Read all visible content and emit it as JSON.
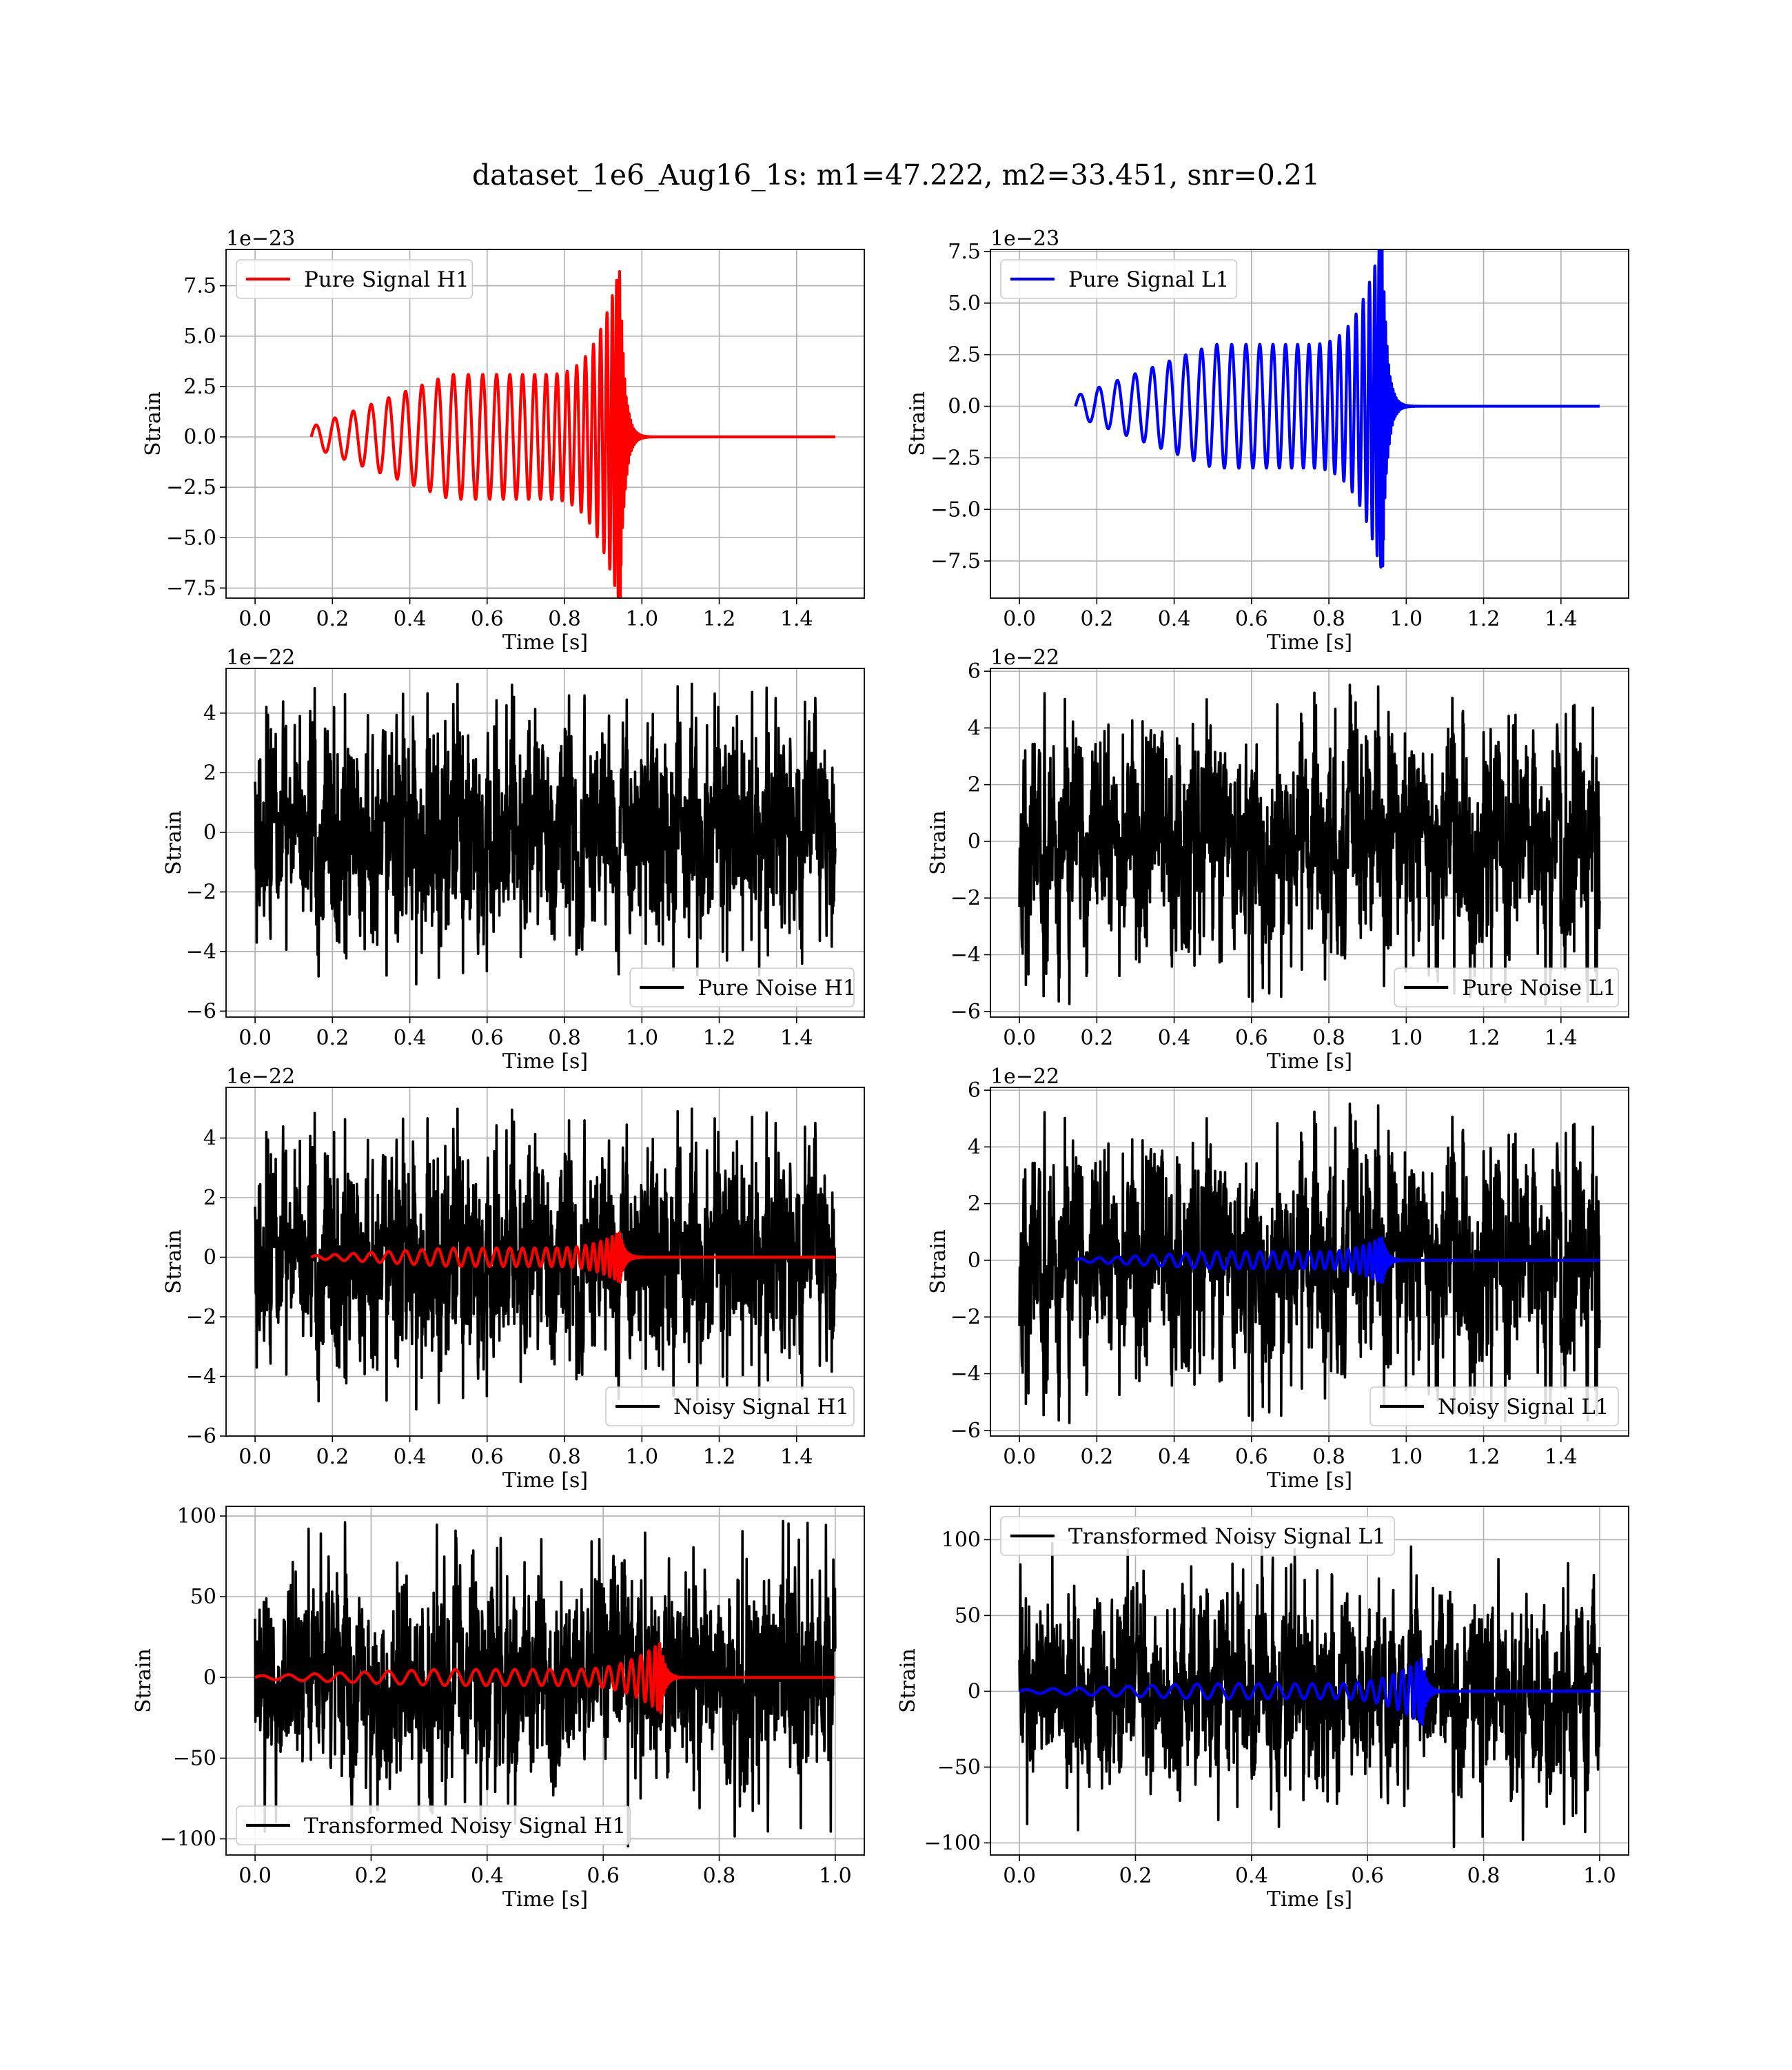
{
  "figure": {
    "title": "dataset_1e6_Aug16_1s: m1=47.222, m2=33.451, snr=0.21"
  },
  "colors": {
    "h1_signal": "#ff0000",
    "l1_signal": "#0000ff",
    "noise": "#000000",
    "grid": "#b0b0b0",
    "axes": "#000000",
    "background": "#ffffff"
  },
  "chart_data": [
    {
      "type": "line",
      "panel": "pure-signal-h1",
      "xlabel": "Time [s]",
      "ylabel": "Strain",
      "offset_text": "1e−23",
      "xlim": [
        -0.075,
        1.575
      ],
      "ylim": [
        -8.0,
        9.3
      ],
      "xticks": [
        0.0,
        0.2,
        0.4,
        0.6,
        0.8,
        1.0,
        1.2,
        1.4
      ],
      "xtick_labels": [
        "0.0",
        "0.2",
        "0.4",
        "0.6",
        "0.8",
        "1.0",
        "1.2",
        "1.4"
      ],
      "yticks": [
        -7.5,
        -5.0,
        -2.5,
        0.0,
        2.5,
        5.0,
        7.5
      ],
      "ytick_labels": [
        "−7.5",
        "−5.0",
        "−2.5",
        "0.0",
        "2.5",
        "5.0",
        "7.5"
      ],
      "grid": true,
      "legend_position": "upper-left",
      "series": [
        {
          "name": "Pure Signal H1",
          "kind": "chirp",
          "color": "#ff0000",
          "t_start": 0.145,
          "t_merger": 0.945,
          "t_end": 1.5,
          "amp_start": 0.5,
          "amp_mid": 3.1,
          "amp_peak": 8.6,
          "cycles": 26,
          "ringdown": 0.012
        }
      ]
    },
    {
      "type": "line",
      "panel": "pure-signal-l1",
      "xlabel": "Time [s]",
      "ylabel": "Strain",
      "offset_text": "1e−23",
      "xlim": [
        -0.075,
        1.575
      ],
      "ylim": [
        -9.3,
        7.6
      ],
      "xticks": [
        0.0,
        0.2,
        0.4,
        0.6,
        0.8,
        1.0,
        1.2,
        1.4
      ],
      "xtick_labels": [
        "0.0",
        "0.2",
        "0.4",
        "0.6",
        "0.8",
        "1.0",
        "1.2",
        "1.4"
      ],
      "yticks": [
        -7.5,
        -5.0,
        -2.5,
        0.0,
        2.5,
        5.0,
        7.5
      ],
      "ytick_labels": [
        "−7.5",
        "−5.0",
        "−2.5",
        "0.0",
        "2.5",
        "5.0",
        "7.5"
      ],
      "grid": true,
      "legend_position": "upper-left",
      "series": [
        {
          "name": "Pure Signal L1",
          "kind": "chirp",
          "color": "#0000ff",
          "t_start": 0.145,
          "t_merger": 0.94,
          "t_end": 1.5,
          "amp_start": 0.5,
          "amp_mid": 3.0,
          "amp_peak": 8.4,
          "cycles": 26,
          "ringdown": 0.012
        }
      ]
    },
    {
      "type": "line",
      "panel": "pure-noise-h1",
      "xlabel": "Time [s]",
      "ylabel": "Strain",
      "offset_text": "1e−22",
      "xlim": [
        -0.075,
        1.575
      ],
      "ylim": [
        -6.2,
        5.5
      ],
      "xticks": [
        0.0,
        0.2,
        0.4,
        0.6,
        0.8,
        1.0,
        1.2,
        1.4
      ],
      "xtick_labels": [
        "0.0",
        "0.2",
        "0.4",
        "0.6",
        "0.8",
        "1.0",
        "1.2",
        "1.4"
      ],
      "yticks": [
        -6,
        -4,
        -2,
        0,
        2,
        4
      ],
      "ytick_labels": [
        "−6",
        "−4",
        "−2",
        "0",
        "2",
        "4"
      ],
      "grid": true,
      "legend_position": "lower-right",
      "series": [
        {
          "name": "Pure Noise H1",
          "kind": "noise",
          "color": "#000000",
          "t_start": 0.0,
          "t_end": 1.5,
          "amp": 1.7,
          "peak": 5.0,
          "seed": 11
        }
      ]
    },
    {
      "type": "line",
      "panel": "pure-noise-l1",
      "xlabel": "Time [s]",
      "ylabel": "Strain",
      "offset_text": "1e−22",
      "xlim": [
        -0.075,
        1.575
      ],
      "ylim": [
        -6.2,
        6.1
      ],
      "xticks": [
        0.0,
        0.2,
        0.4,
        0.6,
        0.8,
        1.0,
        1.2,
        1.4
      ],
      "xtick_labels": [
        "0.0",
        "0.2",
        "0.4",
        "0.6",
        "0.8",
        "1.0",
        "1.2",
        "1.4"
      ],
      "yticks": [
        -6,
        -4,
        -2,
        0,
        2,
        4,
        6
      ],
      "ytick_labels": [
        "−6",
        "−4",
        "−2",
        "0",
        "2",
        "4",
        "6"
      ],
      "grid": true,
      "legend_position": "lower-right",
      "series": [
        {
          "name": "Pure Noise L1",
          "kind": "noise",
          "color": "#000000",
          "t_start": 0.0,
          "t_end": 1.5,
          "amp": 1.8,
          "peak": 5.6,
          "seed": 23
        }
      ]
    },
    {
      "type": "line",
      "panel": "noisy-signal-h1",
      "xlabel": "Time [s]",
      "ylabel": "Strain",
      "offset_text": "1e−22",
      "xlim": [
        -0.075,
        1.575
      ],
      "ylim": [
        -6.0,
        5.7
      ],
      "xticks": [
        0.0,
        0.2,
        0.4,
        0.6,
        0.8,
        1.0,
        1.2,
        1.4
      ],
      "xtick_labels": [
        "0.0",
        "0.2",
        "0.4",
        "0.6",
        "0.8",
        "1.0",
        "1.2",
        "1.4"
      ],
      "yticks": [
        -6,
        -4,
        -2,
        0,
        2,
        4
      ],
      "ytick_labels": [
        "−6",
        "−4",
        "−2",
        "0",
        "2",
        "4"
      ],
      "grid": true,
      "legend_position": "lower-right",
      "series": [
        {
          "name": "Noisy Signal H1",
          "kind": "noise",
          "color": "#000000",
          "t_start": 0.0,
          "t_end": 1.5,
          "amp": 1.7,
          "peak": 5.0,
          "seed": 11
        },
        {
          "kind": "chirp",
          "color": "#ff0000",
          "t_start": 0.145,
          "t_merger": 0.945,
          "t_end": 1.5,
          "amp_start": 0.05,
          "amp_mid": 0.31,
          "amp_peak": 0.86,
          "cycles": 26,
          "ringdown": 0.012
        }
      ]
    },
    {
      "type": "line",
      "panel": "noisy-signal-l1",
      "xlabel": "Time [s]",
      "ylabel": "Strain",
      "offset_text": "1e−22",
      "xlim": [
        -0.075,
        1.575
      ],
      "ylim": [
        -6.2,
        6.1
      ],
      "xticks": [
        0.0,
        0.2,
        0.4,
        0.6,
        0.8,
        1.0,
        1.2,
        1.4
      ],
      "xtick_labels": [
        "0.0",
        "0.2",
        "0.4",
        "0.6",
        "0.8",
        "1.0",
        "1.2",
        "1.4"
      ],
      "yticks": [
        -6,
        -4,
        -2,
        0,
        2,
        4,
        6
      ],
      "ytick_labels": [
        "−6",
        "−4",
        "−2",
        "0",
        "2",
        "4",
        "6"
      ],
      "grid": true,
      "legend_position": "lower-right",
      "series": [
        {
          "name": "Noisy Signal L1",
          "kind": "noise",
          "color": "#000000",
          "t_start": 0.0,
          "t_end": 1.5,
          "amp": 1.8,
          "peak": 5.6,
          "seed": 23
        },
        {
          "kind": "chirp",
          "color": "#0000ff",
          "t_start": 0.145,
          "t_merger": 0.94,
          "t_end": 1.5,
          "amp_start": 0.05,
          "amp_mid": 0.3,
          "amp_peak": 0.84,
          "cycles": 26,
          "ringdown": 0.012
        }
      ]
    },
    {
      "type": "line",
      "panel": "transformed-noisy-signal-h1",
      "xlabel": "Time [s]",
      "ylabel": "Strain",
      "xlim": [
        -0.05,
        1.05
      ],
      "ylim": [
        -110,
        106
      ],
      "xticks": [
        0.0,
        0.2,
        0.4,
        0.6,
        0.8,
        1.0
      ],
      "xtick_labels": [
        "0.0",
        "0.2",
        "0.4",
        "0.6",
        "0.8",
        "1.0"
      ],
      "yticks": [
        -100,
        -50,
        0,
        50,
        100
      ],
      "ytick_labels": [
        "−100",
        "−50",
        "0",
        "50",
        "100"
      ],
      "grid": true,
      "legend_position": "lower-left",
      "series": [
        {
          "name": "Transformed Noisy Signal H1",
          "kind": "noise",
          "color": "#000000",
          "t_start": 0.0,
          "t_end": 1.0,
          "amp": 30,
          "peak": 100,
          "seed": 37
        },
        {
          "kind": "chirp",
          "color": "#ff0000",
          "t_start": 0.0,
          "t_merger": 0.7,
          "t_end": 1.0,
          "amp_start": 1.0,
          "amp_mid": 5.0,
          "amp_peak": 22,
          "cycles": 24,
          "ringdown": 0.008
        }
      ]
    },
    {
      "type": "line",
      "panel": "transformed-noisy-signal-l1",
      "xlabel": "Time [s]",
      "ylabel": "Strain",
      "xlim": [
        -0.05,
        1.05
      ],
      "ylim": [
        -108,
        122
      ],
      "xticks": [
        0.0,
        0.2,
        0.4,
        0.6,
        0.8,
        1.0
      ],
      "xtick_labels": [
        "0.0",
        "0.2",
        "0.4",
        "0.6",
        "0.8",
        "1.0"
      ],
      "yticks": [
        -100,
        -50,
        0,
        50,
        100
      ],
      "ytick_labels": [
        "−100",
        "−50",
        "0",
        "50",
        "100"
      ],
      "grid": true,
      "legend_position": "upper-left",
      "series": [
        {
          "name": "Transformed Noisy Signal L1",
          "kind": "noise",
          "color": "#000000",
          "t_start": 0.0,
          "t_end": 1.0,
          "amp": 28,
          "peak": 100,
          "seed": 41
        },
        {
          "kind": "chirp",
          "color": "#0000ff",
          "t_start": 0.0,
          "t_merger": 0.695,
          "t_end": 1.0,
          "amp_start": 1.0,
          "amp_mid": 5.0,
          "amp_peak": 22,
          "cycles": 24,
          "ringdown": 0.008
        }
      ]
    }
  ]
}
